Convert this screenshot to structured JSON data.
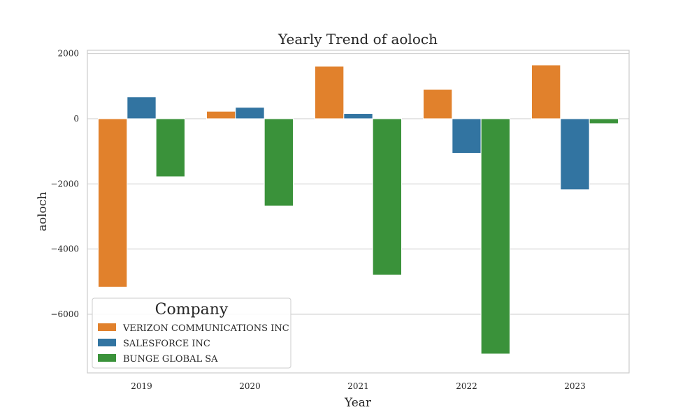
{
  "chart_data": {
    "type": "bar",
    "title": "Yearly Trend of aoloch",
    "xlabel": "Year",
    "ylabel": "aoloch",
    "categories": [
      "2019",
      "2020",
      "2021",
      "2022",
      "2023"
    ],
    "ylim": [
      -7800,
      2100
    ],
    "yticks": [
      2000,
      0,
      -2000,
      -4000,
      -6000
    ],
    "ytick_labels": [
      "2000",
      "0",
      "−2000",
      "−4000",
      "−6000"
    ],
    "grid": true,
    "legend_title": "Company",
    "legend_placement": "lower-left",
    "series": [
      {
        "name": "VERIZON COMMUNICATIONS INC",
        "color": "#e1812c",
        "values": [
          -5170,
          230,
          1610,
          900,
          1650
        ]
      },
      {
        "name": "SALESFORCE INC",
        "color": "#3274a1",
        "values": [
          670,
          350,
          160,
          -1060,
          -2180
        ]
      },
      {
        "name": "BUNGE GLOBAL SA",
        "color": "#3a923a",
        "values": [
          -1780,
          -2680,
          -4800,
          -7220,
          -150
        ]
      }
    ]
  }
}
